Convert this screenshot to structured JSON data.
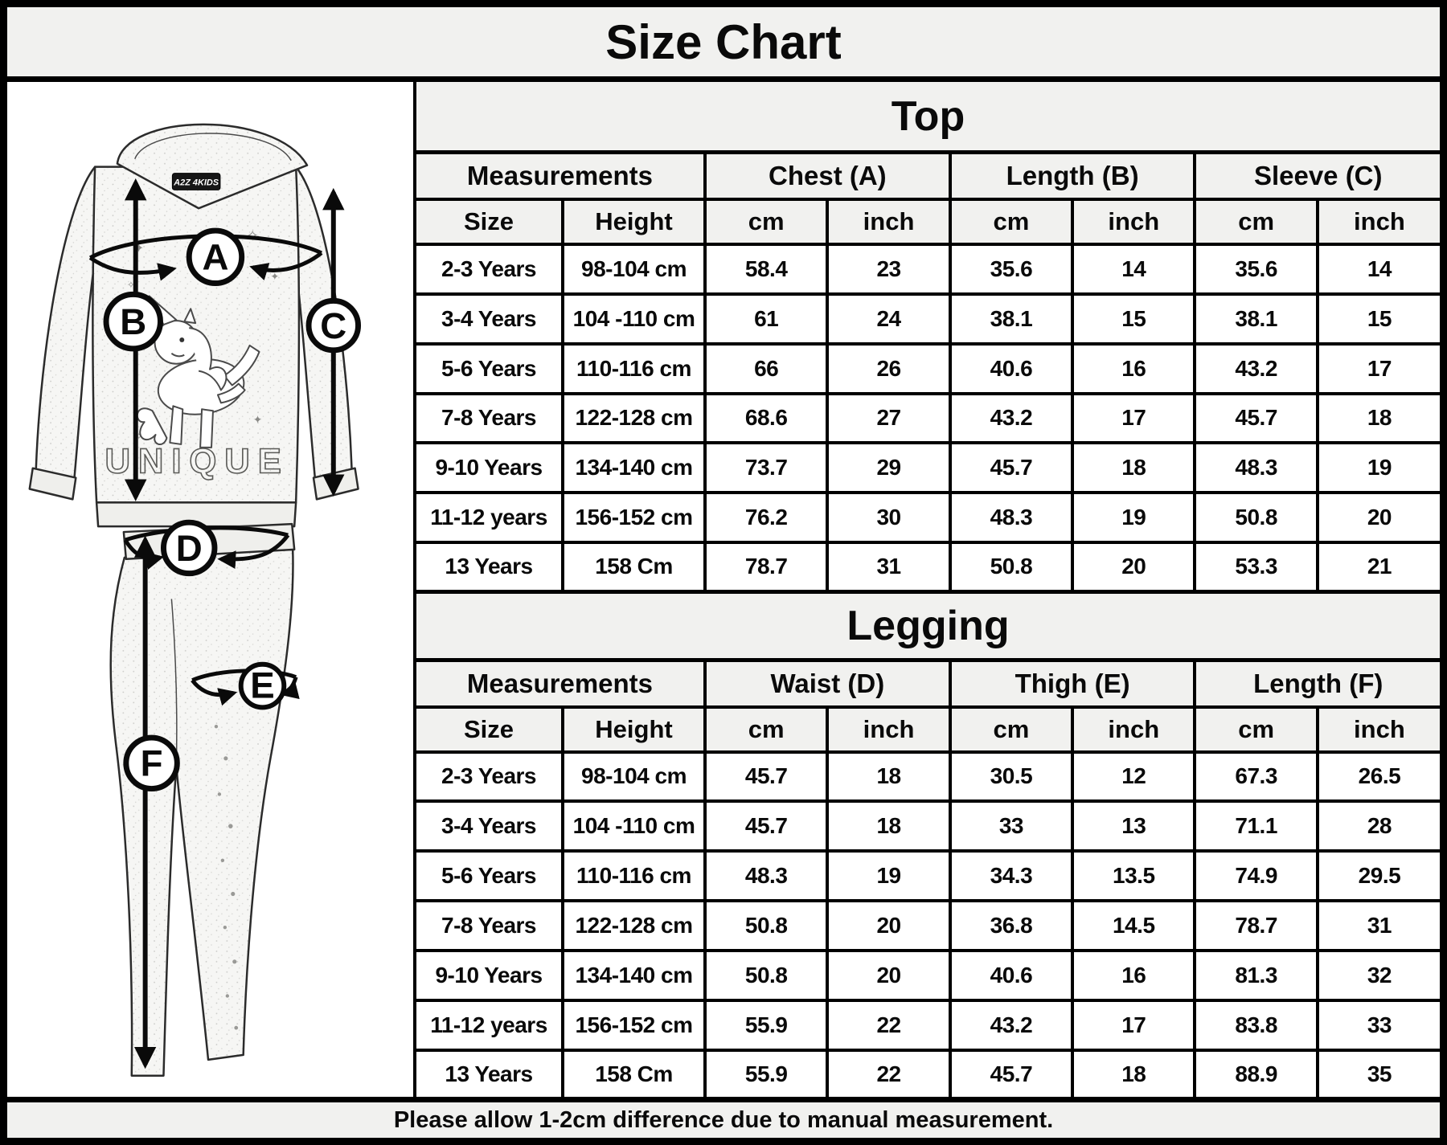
{
  "title": "Size Chart",
  "footer_note": "Please allow 1-2cm difference due to manual measurement.",
  "colors": {
    "background": "#f1f1ef",
    "cell_background": "#ffffff",
    "border": "#000000",
    "text": "#0a0a0a"
  },
  "diagram": {
    "brand_label": "A2Z 4KIDS",
    "garment_print_text": "UNIQUE",
    "markers": {
      "chest": "A",
      "top_length": "B",
      "sleeve": "C",
      "waist": "D",
      "thigh": "E",
      "legging_length": "F"
    }
  },
  "tables": [
    {
      "section_title": "Top",
      "group_headers": [
        "Measurements",
        "Chest (A)",
        "Length (B)",
        "Sleeve (C)"
      ],
      "sub_headers": [
        "Size",
        "Height",
        "cm",
        "inch",
        "cm",
        "inch",
        "cm",
        "inch"
      ],
      "rows": [
        [
          "2-3 Years",
          "98-104 cm",
          "58.4",
          "23",
          "35.6",
          "14",
          "35.6",
          "14"
        ],
        [
          "3-4 Years",
          "104 -110 cm",
          "61",
          "24",
          "38.1",
          "15",
          "38.1",
          "15"
        ],
        [
          "5-6 Years",
          "110-116 cm",
          "66",
          "26",
          "40.6",
          "16",
          "43.2",
          "17"
        ],
        [
          "7-8 Years",
          "122-128 cm",
          "68.6",
          "27",
          "43.2",
          "17",
          "45.7",
          "18"
        ],
        [
          "9-10 Years",
          "134-140 cm",
          "73.7",
          "29",
          "45.7",
          "18",
          "48.3",
          "19"
        ],
        [
          "11-12 years",
          "156-152 cm",
          "76.2",
          "30",
          "48.3",
          "19",
          "50.8",
          "20"
        ],
        [
          "13 Years",
          "158 Cm",
          "78.7",
          "31",
          "50.8",
          "20",
          "53.3",
          "21"
        ]
      ]
    },
    {
      "section_title": "Legging",
      "group_headers": [
        "Measurements",
        "Waist (D)",
        "Thigh (E)",
        "Length (F)"
      ],
      "sub_headers": [
        "Size",
        "Height",
        "cm",
        "inch",
        "cm",
        "inch",
        "cm",
        "inch"
      ],
      "rows": [
        [
          "2-3 Years",
          "98-104 cm",
          "45.7",
          "18",
          "30.5",
          "12",
          "67.3",
          "26.5"
        ],
        [
          "3-4 Years",
          "104 -110 cm",
          "45.7",
          "18",
          "33",
          "13",
          "71.1",
          "28"
        ],
        [
          "5-6 Years",
          "110-116 cm",
          "48.3",
          "19",
          "34.3",
          "13.5",
          "74.9",
          "29.5"
        ],
        [
          "7-8 Years",
          "122-128 cm",
          "50.8",
          "20",
          "36.8",
          "14.5",
          "78.7",
          "31"
        ],
        [
          "9-10 Years",
          "134-140 cm",
          "50.8",
          "20",
          "40.6",
          "16",
          "81.3",
          "32"
        ],
        [
          "11-12 years",
          "156-152 cm",
          "55.9",
          "22",
          "43.2",
          "17",
          "83.8",
          "33"
        ],
        [
          "13 Years",
          "158 Cm",
          "55.9",
          "22",
          "45.7",
          "18",
          "88.9",
          "35"
        ]
      ]
    }
  ]
}
